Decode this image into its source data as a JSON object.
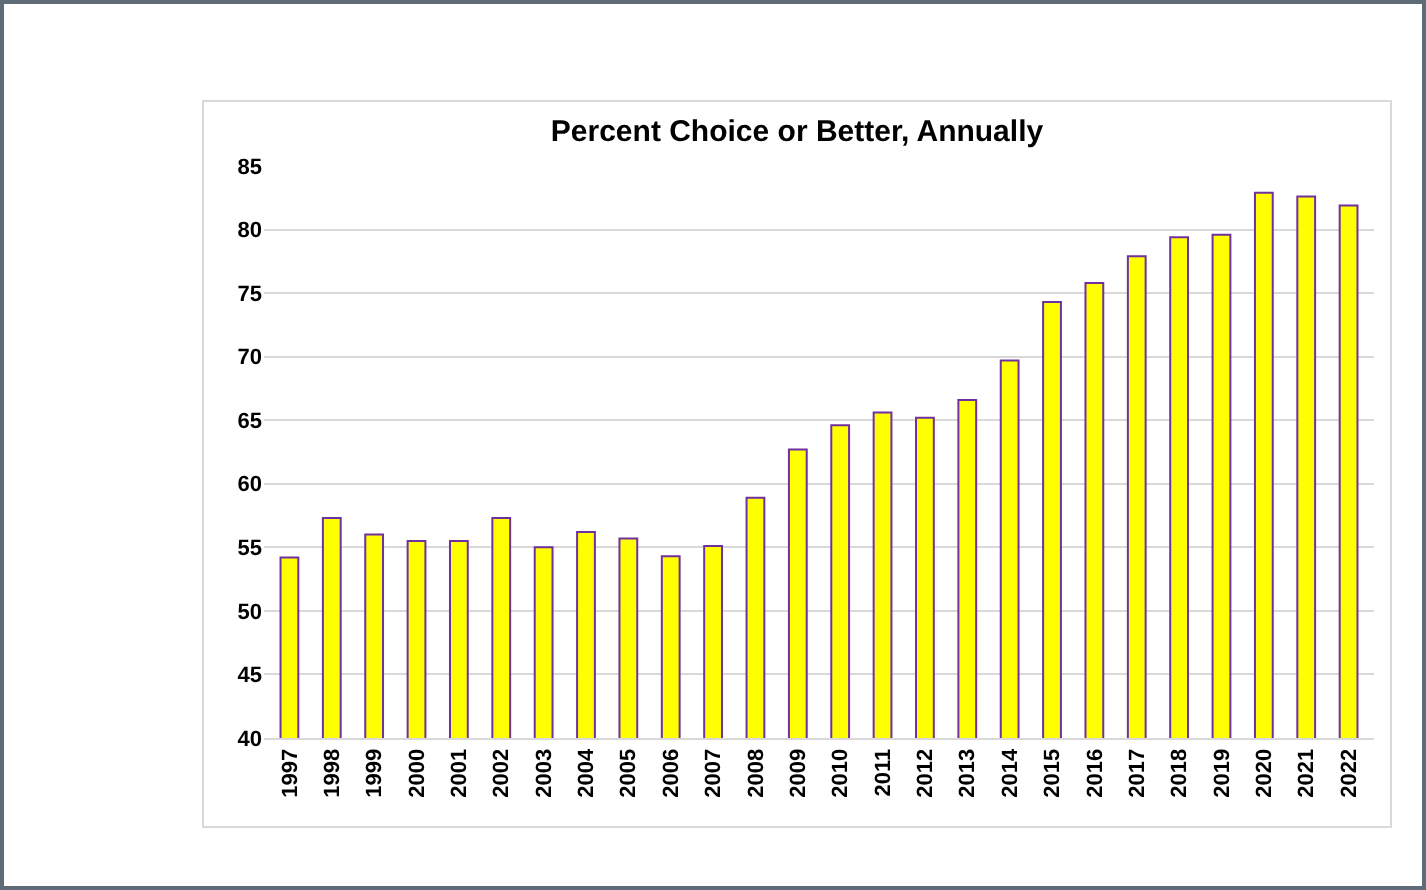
{
  "chart_data": {
    "type": "bar",
    "title": "Percent Choice or Better, Annually",
    "categories": [
      "1997",
      "1998",
      "1999",
      "2000",
      "2001",
      "2002",
      "2003",
      "2004",
      "2005",
      "2006",
      "2007",
      "2008",
      "2009",
      "2010",
      "2011",
      "2012",
      "2013",
      "2014",
      "2015",
      "2016",
      "2017",
      "2018",
      "2019",
      "2020",
      "2021",
      "2022"
    ],
    "series": [
      {
        "color": "#ffff00",
        "values": [
          54.2,
          57.3,
          56.0,
          55.5,
          55.5,
          57.3,
          55.0,
          56.2,
          55.7,
          54.3,
          55.1,
          58.9,
          62.7,
          64.6,
          65.6,
          65.2,
          66.6,
          69.7,
          74.3,
          75.8,
          77.9,
          79.4,
          79.6,
          82.9,
          82.6,
          81.9
        ]
      }
    ],
    "ylim": [
      40,
      85
    ],
    "yticks": [
      40,
      45,
      50,
      55,
      60,
      65,
      70,
      75,
      80,
      85
    ],
    "grid": "y",
    "legend": false
  }
}
